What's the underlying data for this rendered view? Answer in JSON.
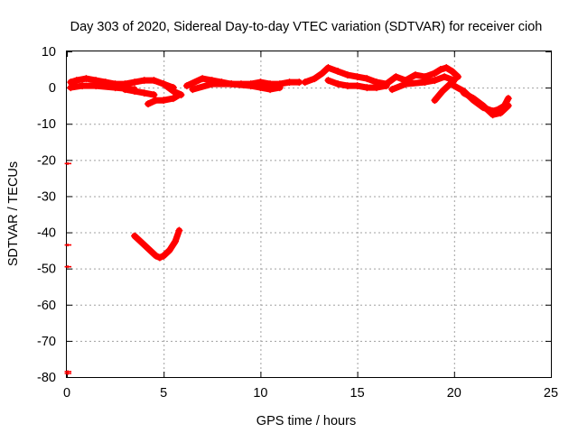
{
  "chart_data": {
    "type": "scatter",
    "title": "Day 303 of 2020, Sidereal Day-to-day VTEC variation (SDTVAR) for receiver cioh",
    "xlabel": "GPS time / hours",
    "ylabel": "SDTVAR / TECUs",
    "xlim": [
      0,
      25
    ],
    "ylim": [
      -80,
      10
    ],
    "xticks": [
      0,
      5,
      10,
      15,
      20,
      25
    ],
    "yticks": [
      10,
      0,
      -10,
      -20,
      -30,
      -40,
      -50,
      -60,
      -70,
      -80
    ],
    "grid": true,
    "marker": "+",
    "series": [
      {
        "name": "SDTVAR",
        "color": "#ff0000",
        "segments": [
          {
            "x": [
              0.2,
              0.5,
              1.0,
              1.5,
              2.0,
              2.5,
              3.0,
              3.5,
              4.0,
              4.5,
              5.0,
              5.5
            ],
            "y": [
              1.5,
              2.0,
              2.5,
              2.0,
              1.5,
              1.0,
              1.0,
              1.5,
              2.0,
              2.0,
              1.0,
              0.0
            ]
          },
          {
            "x": [
              0.2,
              0.8,
              1.5,
              2.5,
              3.5
            ],
            "y": [
              0.0,
              0.5,
              0.5,
              0.0,
              -0.5
            ]
          },
          {
            "x": [
              3.0,
              3.5,
              4.0,
              4.5
            ],
            "y": [
              -0.5,
              -1.0,
              -1.5,
              -2.0
            ]
          },
          {
            "x": [
              4.2,
              4.6,
              5.0,
              5.5,
              5.8
            ],
            "y": [
              -4.5,
              -3.5,
              -3.5,
              -3.0,
              -2.0
            ]
          },
          {
            "x": [
              5.0,
              5.5,
              5.9
            ],
            "y": [
              1.0,
              -1.0,
              -2.0
            ]
          },
          {
            "x": [
              6.2,
              7.0,
              7.5,
              8.0,
              8.5,
              9.0,
              9.5,
              10.0,
              10.5,
              11.0,
              11.5,
              12.0
            ],
            "y": [
              0.5,
              2.5,
              2.0,
              1.5,
              1.0,
              1.0,
              1.0,
              1.5,
              1.0,
              1.0,
              1.5,
              1.5
            ]
          },
          {
            "x": [
              6.5,
              7.5,
              8.5,
              9.5,
              10.0,
              10.5,
              11.0
            ],
            "y": [
              -0.5,
              1.0,
              1.0,
              0.5,
              0.0,
              -0.5,
              0.0
            ]
          },
          {
            "x": [
              12.3,
              12.8,
              13.2,
              13.5,
              14.0,
              14.5,
              15.0,
              15.5,
              16.0,
              16.5
            ],
            "y": [
              1.5,
              2.5,
              4.0,
              5.5,
              4.5,
              3.5,
              3.0,
              2.5,
              1.5,
              1.0
            ]
          },
          {
            "x": [
              13.5,
              14.0,
              14.5,
              15.0,
              15.5,
              16.0,
              16.5
            ],
            "y": [
              2.0,
              1.0,
              0.5,
              0.5,
              0.0,
              0.0,
              0.5
            ]
          },
          {
            "x": [
              16.5,
              17.0,
              17.5,
              18.0,
              18.5,
              19.0,
              19.3,
              19.6,
              19.9,
              20.2
            ],
            "y": [
              1.0,
              3.0,
              2.0,
              3.5,
              3.0,
              4.0,
              5.0,
              5.5,
              4.5,
              3.0
            ]
          },
          {
            "x": [
              16.8,
              17.5,
              18.5,
              19.0,
              19.5,
              20.0
            ],
            "y": [
              -0.5,
              1.0,
              1.5,
              2.0,
              3.0,
              2.0
            ]
          },
          {
            "x": [
              19.0,
              19.4,
              19.8,
              20.0
            ],
            "y": [
              -3.5,
              -1.0,
              1.0,
              2.0
            ]
          },
          {
            "x": [
              20.0,
              20.5,
              21.0,
              21.5,
              22.0,
              22.3,
              22.6,
              22.8
            ],
            "y": [
              0.5,
              -1.0,
              -3.5,
              -5.5,
              -6.5,
              -6.0,
              -5.0,
              -3.0
            ]
          },
          {
            "x": [
              20.5,
              21.0,
              21.5,
              22.0,
              22.4,
              22.8
            ],
            "y": [
              -1.5,
              -3.0,
              -5.0,
              -7.5,
              -7.0,
              -5.0
            ]
          },
          {
            "x": [
              3.5,
              3.8,
              4.1,
              4.4,
              4.6,
              4.8,
              5.0,
              5.3,
              5.6,
              5.8
            ],
            "y": [
              -41,
              -42.5,
              -44,
              -45.5,
              -46.5,
              -47,
              -46.5,
              -45,
              -42.5,
              -39.5
            ]
          }
        ],
        "isolated_points": [
          {
            "x": 0.05,
            "y": -21
          },
          {
            "x": 0.05,
            "y": -43.5
          },
          {
            "x": 0.05,
            "y": -49.5
          },
          {
            "x": 0.05,
            "y": -78.5
          },
          {
            "x": 0.05,
            "y": -79
          }
        ]
      }
    ]
  }
}
